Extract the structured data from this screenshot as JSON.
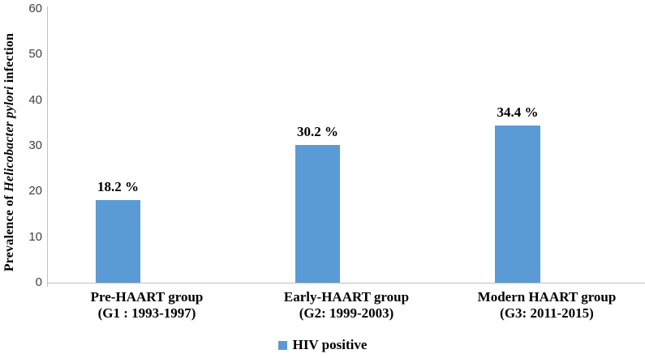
{
  "chart_data": {
    "type": "bar",
    "title": "",
    "ylabel": "Prevalence of Helicobacter pylori infection",
    "ylabel_segments": [
      {
        "text": "Prevalence of ",
        "italic": false
      },
      {
        "text": "Helicobacter pylori",
        "italic": true
      },
      {
        "text": " infection",
        "italic": false
      }
    ],
    "categories": [
      [
        "Pre-HAART group",
        "(G1 : 1993-1997)"
      ],
      [
        "Early-HAART group",
        "(G2: 1999-2003)"
      ],
      [
        "Modern HAART group",
        "(G3: 2011-2015)"
      ]
    ],
    "series": [
      {
        "name": "HIV positive",
        "values": [
          18.2,
          30.2,
          34.4
        ],
        "color": "#5B9BD5"
      }
    ],
    "value_labels": [
      "18.2 %",
      "30.2 %",
      "34.4 %"
    ],
    "ylim": [
      0,
      60
    ],
    "yticks": [
      0,
      10,
      20,
      30,
      40,
      50,
      60
    ],
    "grid": false,
    "legend_position": "bottom"
  },
  "legend": {
    "label": "HIV positive",
    "swatch_color": "#5B9BD5"
  },
  "colors": {
    "bar": "#5B9BD5",
    "axis_line": "#BFBFBF",
    "tick_text": "#404040",
    "label_text": "#000000",
    "background": "#FFFFFF"
  }
}
